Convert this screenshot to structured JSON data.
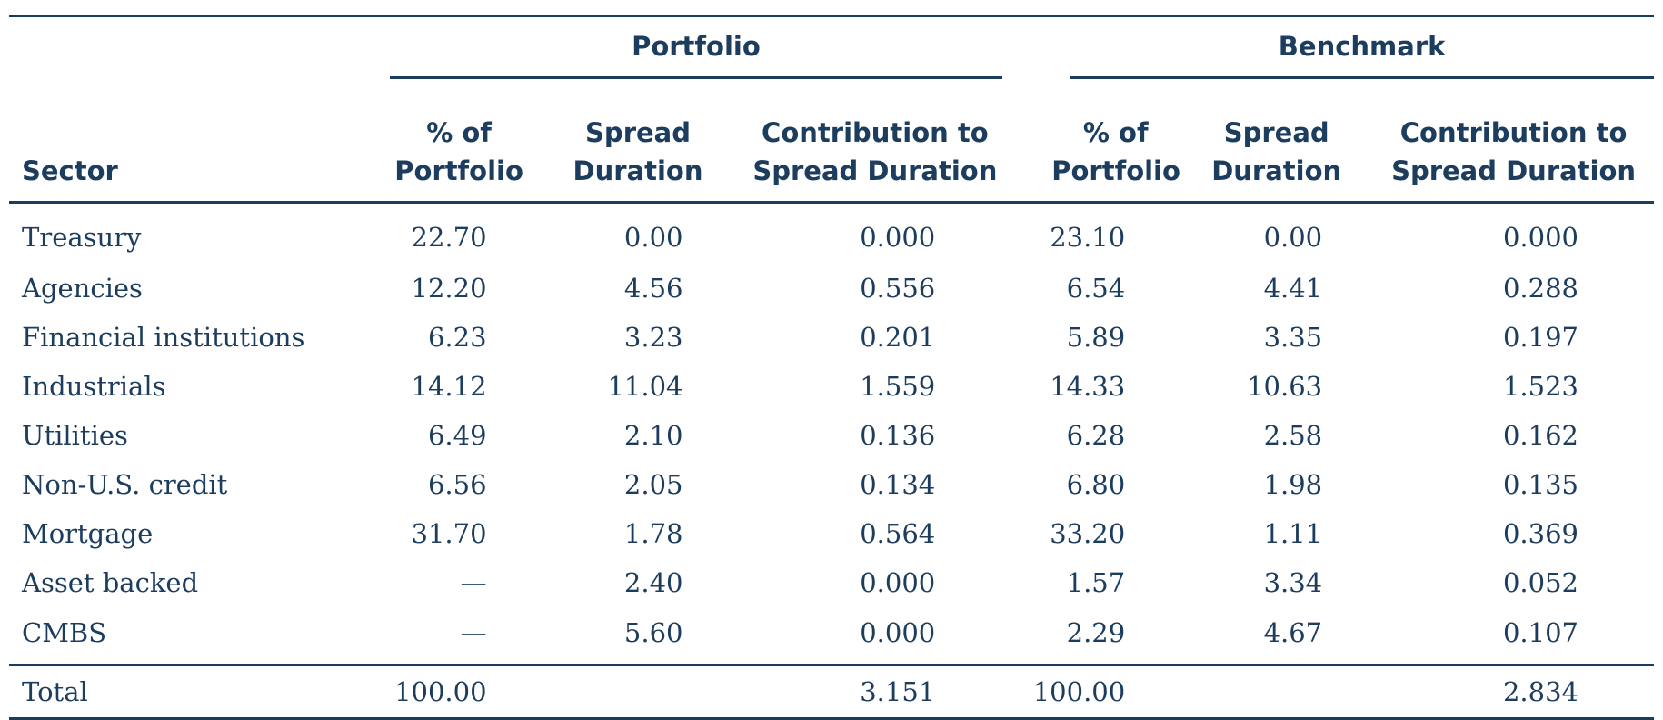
{
  "table": {
    "groups": {
      "portfolio": "Portfolio",
      "benchmark": "Benchmark"
    },
    "columns": {
      "sector": "Sector",
      "p_pct": [
        "% of",
        "Portfolio"
      ],
      "p_spread": [
        "Spread",
        "Duration"
      ],
      "p_contrib": [
        "Contribution to",
        "Spread Duration"
      ],
      "b_pct": [
        "% of",
        "Portfolio"
      ],
      "b_spread": [
        "Spread",
        "Duration"
      ],
      "b_contrib": [
        "Contribution to",
        "Spread Duration"
      ]
    },
    "rows": [
      {
        "sector": "Treasury",
        "p_pct": "22.70",
        "p_spread": "0.00",
        "p_contrib": "0.000",
        "b_pct": "23.10",
        "b_spread": "0.00",
        "b_contrib": "0.000"
      },
      {
        "sector": "Agencies",
        "p_pct": "12.20",
        "p_spread": "4.56",
        "p_contrib": "0.556",
        "b_pct": "6.54",
        "b_spread": "4.41",
        "b_contrib": "0.288"
      },
      {
        "sector": "Financial institutions",
        "p_pct": "6.23",
        "p_spread": "3.23",
        "p_contrib": "0.201",
        "b_pct": "5.89",
        "b_spread": "3.35",
        "b_contrib": "0.197"
      },
      {
        "sector": "Industrials",
        "p_pct": "14.12",
        "p_spread": "11.04",
        "p_contrib": "1.559",
        "b_pct": "14.33",
        "b_spread": "10.63",
        "b_contrib": "1.523"
      },
      {
        "sector": "Utilities",
        "p_pct": "6.49",
        "p_spread": "2.10",
        "p_contrib": "0.136",
        "b_pct": "6.28",
        "b_spread": "2.58",
        "b_contrib": "0.162"
      },
      {
        "sector": "Non-U.S. credit",
        "p_pct": "6.56",
        "p_spread": "2.05",
        "p_contrib": "0.134",
        "b_pct": "6.80",
        "b_spread": "1.98",
        "b_contrib": "0.135"
      },
      {
        "sector": "Mortgage",
        "p_pct": "31.70",
        "p_spread": "1.78",
        "p_contrib": "0.564",
        "b_pct": "33.20",
        "b_spread": "1.11",
        "b_contrib": "0.369"
      },
      {
        "sector": "Asset backed",
        "p_pct": "—",
        "p_spread": "2.40",
        "p_contrib": "0.000",
        "b_pct": "1.57",
        "b_spread": "3.34",
        "b_contrib": "0.052"
      },
      {
        "sector": "CMBS",
        "p_pct": "—",
        "p_spread": "5.60",
        "p_contrib": "0.000",
        "b_pct": "2.29",
        "b_spread": "4.67",
        "b_contrib": "0.107"
      }
    ],
    "total": {
      "sector": "Total",
      "p_pct": "100.00",
      "p_spread": "",
      "p_contrib": "3.151",
      "b_pct": "100.00",
      "b_spread": "",
      "b_contrib": "2.834"
    }
  }
}
